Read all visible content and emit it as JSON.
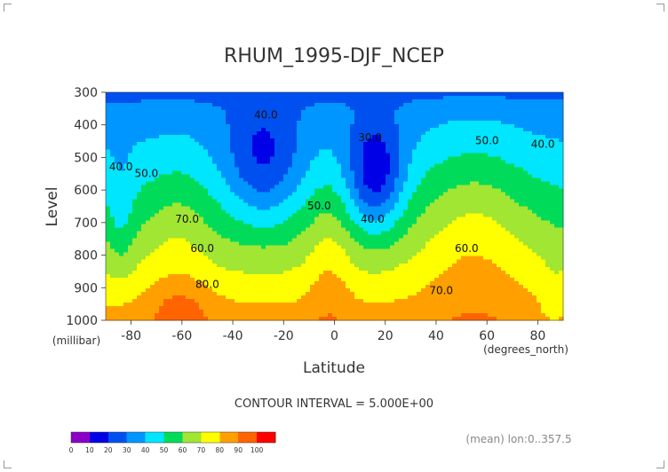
{
  "chart_data": {
    "type": "heatmap",
    "title": "RHUM_1995-DJF_NCEP",
    "xlabel": "Latitude",
    "ylabel": "Level",
    "x_units": "(degrees_north)",
    "y_units": "(millibar)",
    "xlim": [
      -90,
      90
    ],
    "ylim": [
      1000,
      300
    ],
    "x_ticks": [
      "-80",
      "-60",
      "-40",
      "-20",
      "0",
      "20",
      "40",
      "60",
      "80"
    ],
    "y_ticks": [
      "300",
      "400",
      "500",
      "600",
      "700",
      "800",
      "900",
      "1000"
    ],
    "contour_interval_text": "CONTOUR INTERVAL = 5.000E+00",
    "footnote": "(mean) lon:0..357.5",
    "colorbar": {
      "labels": [
        "0",
        "10",
        "20",
        "30",
        "40",
        "50",
        "60",
        "70",
        "80",
        "90",
        "100"
      ],
      "colors": [
        "#8c00c8",
        "#0000e6",
        "#0050f0",
        "#0096ff",
        "#00e6ff",
        "#00dc5a",
        "#a0e632",
        "#ffff00",
        "#ffa000",
        "#ff6400",
        "#ff0000"
      ]
    },
    "contour_labels": [
      {
        "text": "40.0",
        "lat": -27,
        "level": 380
      },
      {
        "text": "30.0",
        "lat": 14,
        "level": 450
      },
      {
        "text": "50.0",
        "lat": 60,
        "level": 460
      },
      {
        "text": "40.0",
        "lat": 82,
        "level": 470
      },
      {
        "text": "40.0",
        "lat": -84,
        "level": 540
      },
      {
        "text": "50.0",
        "lat": -74,
        "level": 560
      },
      {
        "text": "50.0",
        "lat": -6,
        "level": 660
      },
      {
        "text": "40.0",
        "lat": 15,
        "level": 700
      },
      {
        "text": "70.0",
        "lat": -58,
        "level": 700
      },
      {
        "text": "60.0",
        "lat": -52,
        "level": 790
      },
      {
        "text": "60.0",
        "lat": 52,
        "level": 790
      },
      {
        "text": "80.0",
        "lat": -50,
        "level": 900
      },
      {
        "text": "70.0",
        "lat": 42,
        "level": 920
      }
    ],
    "grid": false
  }
}
